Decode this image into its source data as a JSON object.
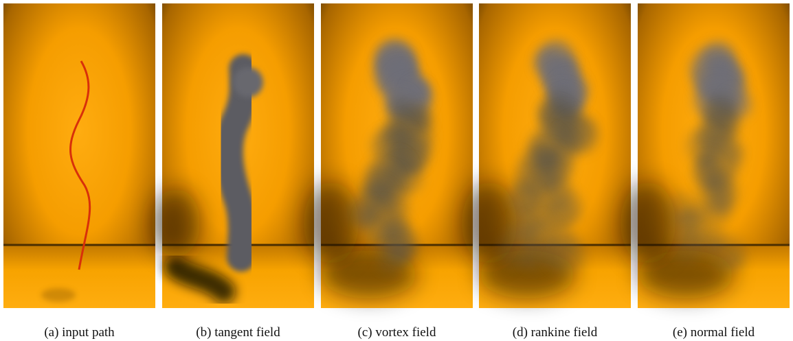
{
  "panels": [
    {
      "caption": "(a) input path"
    },
    {
      "caption": "(b) tangent field"
    },
    {
      "caption": "(c) vortex field"
    },
    {
      "caption": "(d) rankine field"
    },
    {
      "caption": "(e) normal field"
    }
  ]
}
